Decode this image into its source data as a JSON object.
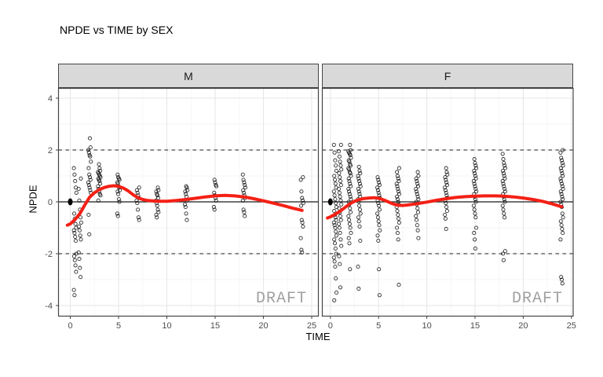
{
  "title": "NPDE vs TIME by SEX",
  "watermark": "DRAFT",
  "colors": {
    "smooth_red": "#f42015",
    "point_black": "#000000",
    "solid_point": "#000000",
    "strip_fill": "#d9d9d9",
    "strip_border": "#454545",
    "panel_border": "#454545",
    "panel_bg": "#ffffff",
    "grid_major": "#e6e6e6",
    "grid_minor": "#f3f3f3",
    "axis_text": "#4d4d4d",
    "title_text": "#000000",
    "watermark_gray": "#a0a0a0",
    "ref_line_black": "#1a1a1a"
  },
  "chart_data": {
    "type": "scatter",
    "title": "NPDE vs TIME by SEX",
    "xlabel": "TIME",
    "ylabel": "NPDE",
    "facet_variable": "SEX",
    "x_ticks": [
      0,
      5,
      10,
      15,
      20,
      25
    ],
    "y_ticks": [
      -4,
      -2,
      0,
      2,
      4
    ],
    "x_minor": [
      2.5,
      7.5,
      12.5,
      17.5,
      22.5
    ],
    "y_minor": [
      -3,
      -1,
      1,
      3
    ],
    "xlim": [
      -1.3,
      26
    ],
    "ylim": [
      -4.4,
      4.4
    ],
    "grid": true,
    "ref_lines": {
      "solid": [
        0
      ],
      "dashed": [
        -2,
        2
      ]
    },
    "facets": [
      {
        "label": "M",
        "solid_point": {
          "t": 0,
          "y": 0
        },
        "columns": [
          {
            "t": 0.5,
            "ys": [
              1.3,
              1.05,
              0.8,
              0.55,
              0.35,
              -0.45,
              -0.65,
              -0.85,
              -1.0,
              -1.1,
              -1.2,
              -1.35,
              -1.5,
              -2.0,
              -2.1,
              -2.25,
              -2.45,
              -2.7,
              -3.4,
              -3.6
            ]
          },
          {
            "t": 1,
            "ys": [
              0.9,
              0.5,
              0.05,
              -0.3,
              -0.6,
              -0.8,
              -0.95,
              -1.1,
              -1.3,
              -1.45,
              -1.95,
              -2.2,
              -2.55,
              -2.9
            ]
          },
          {
            "t": 2,
            "ys": [
              2.45,
              2.1,
              2.0,
              1.9,
              1.8,
              1.75,
              1.55,
              1.3,
              1.05,
              0.95,
              0.85,
              0.75,
              0.65,
              0.55,
              0.45,
              0.35,
              -0.5,
              -1.25
            ]
          },
          {
            "t": 3,
            "ys": [
              1.45,
              1.3,
              1.2,
              1.15,
              1.1,
              1.05,
              1.0,
              0.95,
              0.9,
              0.85,
              0.8,
              0.7,
              0.6,
              0.5,
              0.4,
              0.3,
              0.25,
              0.05
            ]
          },
          {
            "t": 5,
            "ys": [
              1.05,
              0.95,
              0.9,
              0.85,
              0.75,
              0.7,
              0.6,
              0.55,
              0.45,
              0.4,
              0.3,
              0.1,
              0.0,
              -0.45,
              -0.55
            ]
          },
          {
            "t": 7,
            "ys": [
              0.55,
              0.45,
              0.35,
              0.25,
              0.15,
              0.05,
              -0.05,
              -0.3,
              -0.6,
              -0.7
            ]
          },
          {
            "t": 9,
            "ys": [
              0.55,
              0.45,
              0.4,
              0.3,
              0.25,
              0.15,
              0.05,
              -0.05,
              -0.15,
              -0.3,
              -0.4,
              -0.5,
              -0.6
            ]
          },
          {
            "t": 12,
            "ys": [
              0.6,
              0.55,
              0.45,
              0.4,
              0.3,
              0.2,
              0.05,
              -0.1,
              -0.2,
              -0.45,
              -0.7
            ]
          },
          {
            "t": 15,
            "ys": [
              0.85,
              0.75,
              0.65,
              0.6,
              0.35,
              0.25,
              0.15,
              0.05,
              -0.2,
              -0.3
            ]
          },
          {
            "t": 18,
            "ys": [
              1.05,
              0.85,
              0.75,
              0.65,
              0.55,
              0.45,
              0.35,
              0.25,
              0.15,
              0.05,
              -0.3,
              -0.4,
              -0.55
            ]
          },
          {
            "t": 24,
            "ys": [
              0.95,
              0.85,
              0.4,
              0.15,
              0.05,
              -0.05,
              -0.15,
              -0.7,
              -0.8,
              -0.95,
              -1.4,
              -1.85,
              -1.95
            ]
          }
        ],
        "smooth": [
          [
            -0.3,
            -0.9
          ],
          [
            0,
            -0.85
          ],
          [
            0.5,
            -0.68
          ],
          [
            1,
            -0.45
          ],
          [
            1.5,
            -0.12
          ],
          [
            2,
            0.18
          ],
          [
            2.5,
            0.35
          ],
          [
            3,
            0.47
          ],
          [
            3.5,
            0.55
          ],
          [
            4,
            0.6
          ],
          [
            4.5,
            0.62
          ],
          [
            5,
            0.6
          ],
          [
            5.5,
            0.53
          ],
          [
            6,
            0.42
          ],
          [
            6.5,
            0.28
          ],
          [
            7,
            0.16
          ],
          [
            7.5,
            0.09
          ],
          [
            8,
            0.05
          ],
          [
            9,
            0.02
          ],
          [
            10,
            0.02
          ],
          [
            11,
            0.05
          ],
          [
            12,
            0.09
          ],
          [
            13,
            0.14
          ],
          [
            14,
            0.19
          ],
          [
            15,
            0.23
          ],
          [
            16,
            0.25
          ],
          [
            17,
            0.23
          ],
          [
            18,
            0.19
          ],
          [
            19,
            0.12
          ],
          [
            20,
            0.04
          ],
          [
            21,
            -0.05
          ],
          [
            22,
            -0.14
          ],
          [
            23,
            -0.24
          ],
          [
            24,
            -0.33
          ]
        ]
      },
      {
        "label": "F",
        "solid_point": {
          "t": 0,
          "y": 0
        },
        "columns": [
          {
            "t": 0.5,
            "ys": [
              2.2,
              1.9,
              1.6,
              1.4,
              1.2,
              1.0,
              0.85,
              0.7,
              0.55,
              0.4,
              0.25,
              0.1,
              -0.05,
              -0.2,
              -0.35,
              -0.5,
              -0.6,
              -0.7,
              -0.8,
              -0.9,
              -1.0,
              -1.15,
              -1.3,
              -1.45,
              -1.6,
              -1.8,
              -2.0,
              -2.15,
              -2.3,
              -2.5,
              -2.95,
              -3.5,
              -3.8
            ]
          },
          {
            "t": 1,
            "ys": [
              2.2,
              1.95,
              1.75,
              1.55,
              1.4,
              1.25,
              1.1,
              0.95,
              0.8,
              0.65,
              0.5,
              0.35,
              0.2,
              0.05,
              -0.1,
              -0.25,
              -0.4,
              -0.55,
              -0.7,
              -0.85,
              -1.0,
              -1.2,
              -1.45,
              -1.7,
              -2.1,
              -2.4,
              -3.3
            ]
          },
          {
            "t": 2,
            "ys": [
              2.2,
              2.0,
              1.95,
              1.9,
              1.85,
              1.8,
              1.7,
              1.6,
              1.55,
              1.45,
              1.4,
              1.3,
              1.25,
              1.15,
              1.1,
              1.0,
              0.9,
              0.8,
              0.7,
              0.6,
              0.5,
              0.4,
              0.3,
              0.2,
              0.1,
              0.0,
              -0.1,
              -0.25,
              -0.4,
              -0.55,
              -0.7,
              -0.85,
              -1.0,
              -1.2,
              -1.4,
              -1.6,
              -2.6
            ]
          },
          {
            "t": 3,
            "ys": [
              1.35,
              1.2,
              1.1,
              1.0,
              0.9,
              0.8,
              0.7,
              0.6,
              0.5,
              0.4,
              0.3,
              0.2,
              0.1,
              0.0,
              -0.15,
              -0.3,
              -0.45,
              -0.6,
              -0.75,
              -0.95,
              -1.5,
              -2.5,
              -3.35
            ]
          },
          {
            "t": 5,
            "ys": [
              0.95,
              0.85,
              0.75,
              0.65,
              0.55,
              0.45,
              0.35,
              0.25,
              0.15,
              0.05,
              -0.05,
              -0.15,
              -0.3,
              -0.45,
              -0.6,
              -0.75,
              -0.9,
              -1.1,
              -1.3,
              -1.5,
              -2.6,
              -3.6
            ]
          },
          {
            "t": 7,
            "ys": [
              1.3,
              1.15,
              1.0,
              0.9,
              0.8,
              0.7,
              0.6,
              0.5,
              0.4,
              0.3,
              0.2,
              0.1,
              0.0,
              -0.1,
              -0.2,
              -0.35,
              -0.5,
              -0.65,
              -0.8,
              -1.0,
              -1.2,
              -1.45,
              -3.2
            ]
          },
          {
            "t": 9,
            "ys": [
              1.15,
              1.0,
              0.9,
              0.8,
              0.7,
              0.6,
              0.5,
              0.4,
              0.3,
              0.2,
              0.1,
              0.0,
              -0.1,
              -0.25,
              -0.4,
              -0.55,
              -0.7,
              -0.9,
              -1.1,
              -1.4
            ]
          },
          {
            "t": 12,
            "ys": [
              1.3,
              1.15,
              1.05,
              0.95,
              0.85,
              0.75,
              0.65,
              0.55,
              0.45,
              0.35,
              0.25,
              0.15,
              0.05,
              -0.05,
              -0.2,
              -0.35,
              -0.5,
              -0.65,
              -1.05
            ]
          },
          {
            "t": 15,
            "ys": [
              1.65,
              1.5,
              1.4,
              1.3,
              1.2,
              1.1,
              1.0,
              0.9,
              0.8,
              0.7,
              0.6,
              0.5,
              0.4,
              0.3,
              0.2,
              0.1,
              0.0,
              -0.15,
              -0.3,
              -0.45,
              -0.6,
              -1.0,
              -1.2,
              -1.45,
              -1.8
            ]
          },
          {
            "t": 18,
            "ys": [
              1.85,
              1.65,
              1.5,
              1.4,
              1.3,
              1.2,
              1.1,
              1.0,
              0.9,
              0.8,
              0.7,
              0.6,
              0.5,
              0.4,
              0.3,
              0.2,
              0.1,
              0.0,
              -0.15,
              -0.3,
              -0.45,
              -0.6,
              -1.9,
              -2.0,
              -2.25
            ]
          },
          {
            "t": 24,
            "ys": [
              2.0,
              1.9,
              1.7,
              1.6,
              1.5,
              1.4,
              1.3,
              1.2,
              1.1,
              1.0,
              0.9,
              0.8,
              0.7,
              0.6,
              0.5,
              0.4,
              0.3,
              0.2,
              0.1,
              0.0,
              -0.1,
              -0.2,
              -0.45,
              -0.6,
              -0.75,
              -0.9,
              -1.05,
              -1.2,
              -1.45,
              -2.9,
              -3.0,
              -3.15
            ]
          }
        ],
        "smooth": [
          [
            -0.3,
            -0.62
          ],
          [
            0,
            -0.58
          ],
          [
            0.5,
            -0.48
          ],
          [
            1,
            -0.36
          ],
          [
            1.5,
            -0.22
          ],
          [
            2,
            -0.08
          ],
          [
            2.5,
            0.02
          ],
          [
            3,
            0.09
          ],
          [
            3.5,
            0.13
          ],
          [
            4,
            0.15
          ],
          [
            4.5,
            0.16
          ],
          [
            5,
            0.14
          ],
          [
            5.5,
            0.08
          ],
          [
            6,
            0.0
          ],
          [
            6.5,
            -0.08
          ],
          [
            7,
            -0.13
          ],
          [
            7.5,
            -0.14
          ],
          [
            8,
            -0.12
          ],
          [
            9,
            -0.07
          ],
          [
            10,
            -0.01
          ],
          [
            11,
            0.06
          ],
          [
            12,
            0.12
          ],
          [
            13,
            0.17
          ],
          [
            14,
            0.2
          ],
          [
            15,
            0.22
          ],
          [
            16,
            0.23
          ],
          [
            17,
            0.23
          ],
          [
            18,
            0.22
          ],
          [
            19,
            0.19
          ],
          [
            20,
            0.15
          ],
          [
            21,
            0.09
          ],
          [
            22,
            0.02
          ],
          [
            23,
            -0.08
          ],
          [
            24,
            -0.19
          ]
        ]
      }
    ]
  }
}
